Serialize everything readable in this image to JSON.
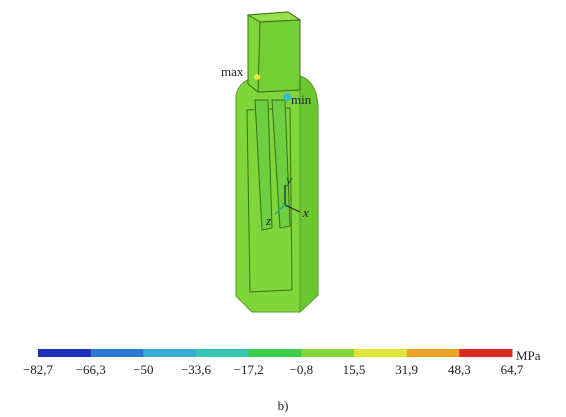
{
  "figure": {
    "labels": {
      "max": "max",
      "min": "min",
      "y_axis": "y",
      "z_axis": "z",
      "x_axis": "x"
    },
    "colorbar": {
      "colors": [
        "#1b2fb8",
        "#2b78d0",
        "#3aa8d8",
        "#39c6b0",
        "#3ccc48",
        "#86d83a",
        "#dfe83a",
        "#efa428",
        "#dd2a22"
      ],
      "ticks": [
        "−82,7",
        "−66,3",
        "−50",
        "−33,6",
        "−17,2",
        "−0,8",
        "15,5",
        "31,9",
        "48,3",
        "64,7"
      ],
      "unit": "MPa"
    },
    "caption": "b)"
  }
}
